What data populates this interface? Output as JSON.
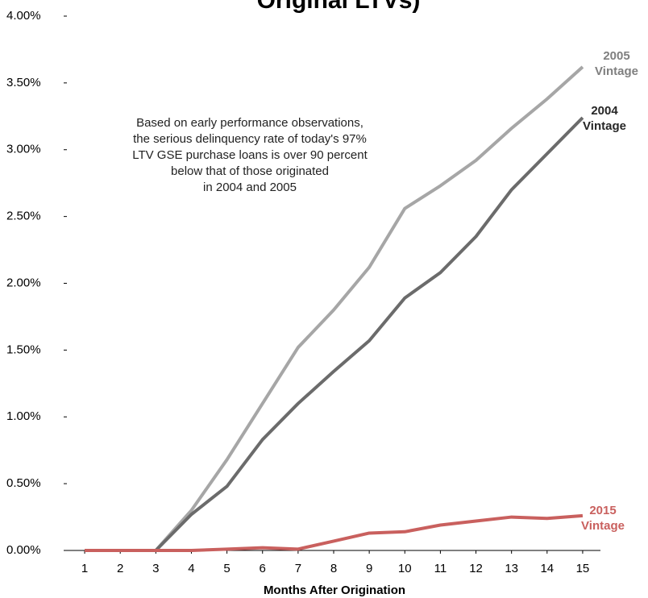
{
  "chart_data": {
    "type": "line",
    "title": "Original LTVs)",
    "annotation": "Based on early performance observations,\nthe serious delinquency rate of today's 97%\nLTV GSE purchase loans is over 90 percent\nbelow that of those originated\nin 2004 and 2005",
    "x_label": "Months After Origination",
    "x": [
      1,
      2,
      3,
      4,
      5,
      6,
      7,
      8,
      9,
      10,
      11,
      12,
      13,
      14,
      15
    ],
    "xlim": [
      0.5,
      15.5
    ],
    "xticks": [
      1,
      2,
      3,
      4,
      5,
      6,
      7,
      8,
      9,
      10,
      11,
      12,
      13,
      14,
      15
    ],
    "ylim": [
      0,
      4
    ],
    "yticks": [
      {
        "value": 0,
        "label": "0.00%"
      },
      {
        "value": 0.5,
        "label": "0.50%"
      },
      {
        "value": 1,
        "label": "1.00%"
      },
      {
        "value": 1.5,
        "label": "1.50%"
      },
      {
        "value": 2,
        "label": "2.00%"
      },
      {
        "value": 2.5,
        "label": "2.50%"
      },
      {
        "value": 3,
        "label": "3.00%"
      },
      {
        "value": 3.5,
        "label": "3.50%"
      },
      {
        "value": 4,
        "label": "4.00%"
      }
    ],
    "series": [
      {
        "name": "2005 Vintage",
        "color": "#a6a6a6",
        "label_color": "#7f7f7f",
        "values": [
          0,
          0,
          0,
          0.3,
          0.68,
          1.1,
          1.52,
          1.8,
          2.12,
          2.56,
          2.73,
          2.92,
          3.16,
          3.38,
          3.62
        ]
      },
      {
        "name": "2004 Vintage",
        "color": "#6b6b6b",
        "label_color": "#262626",
        "values": [
          0,
          0,
          0,
          0.27,
          0.48,
          0.83,
          1.1,
          1.34,
          1.57,
          1.89,
          2.08,
          2.35,
          2.7,
          2.97,
          3.24
        ]
      },
      {
        "name": "2015 Vintage",
        "color": "#c9605e",
        "label_color": "#c9605e",
        "values": [
          0,
          0,
          0,
          0,
          0.01,
          0.02,
          0.01,
          0.07,
          0.13,
          0.14,
          0.19,
          0.22,
          0.25,
          0.24,
          0.26
        ]
      }
    ]
  }
}
